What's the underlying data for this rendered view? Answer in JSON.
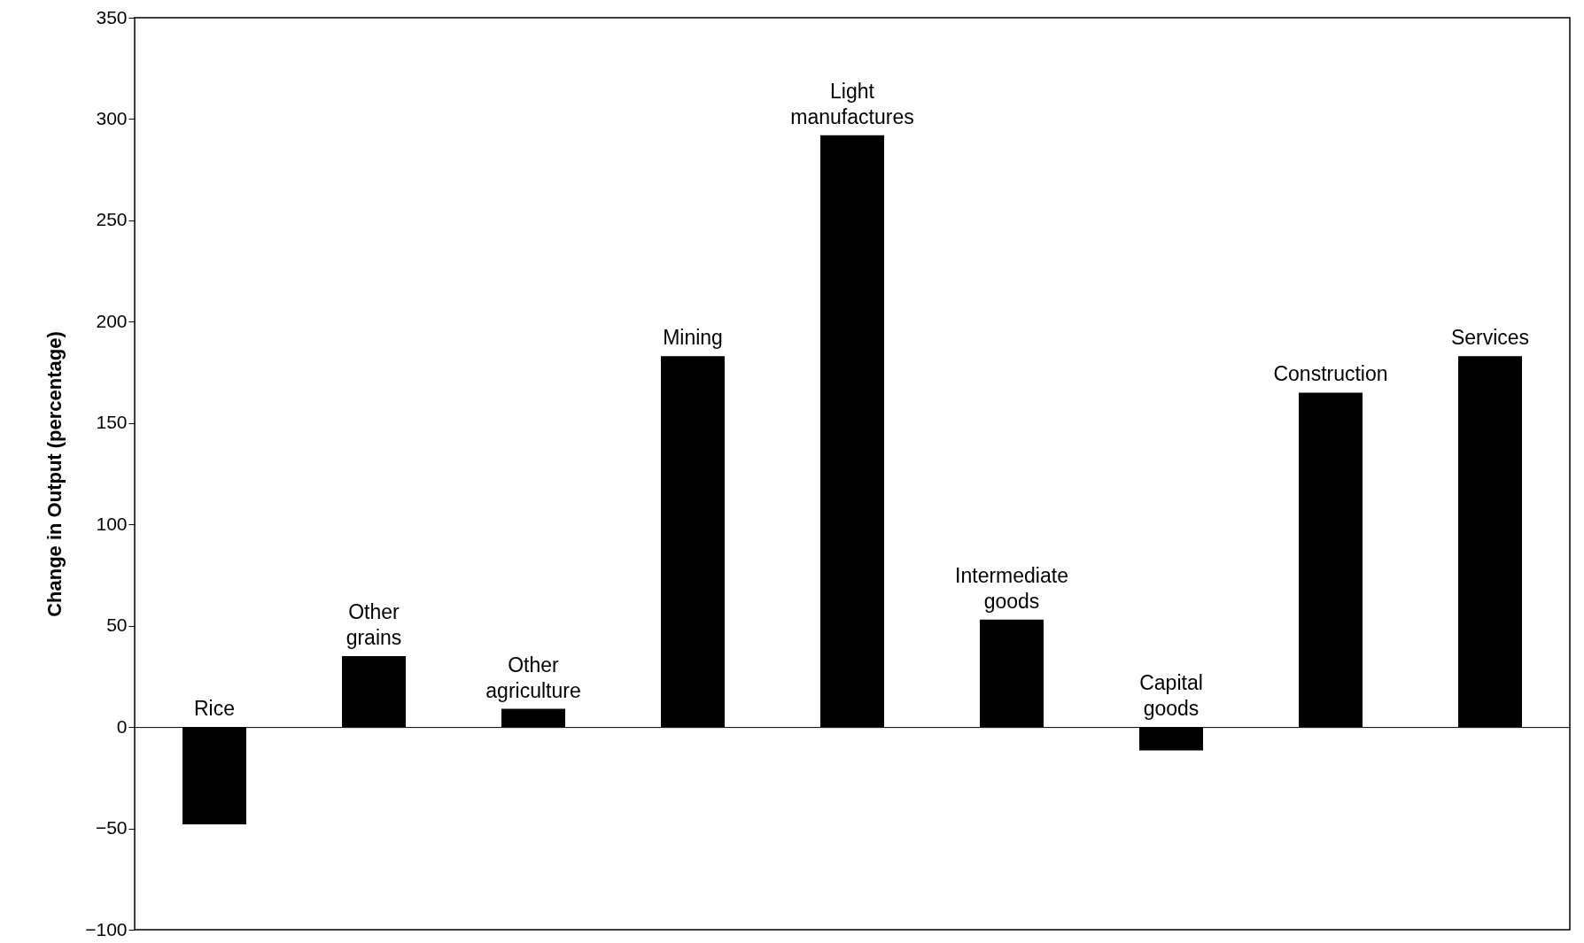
{
  "chart_data": {
    "type": "bar",
    "ylabel": "Change in Output (percentage)",
    "categories": [
      "Rice",
      "Other grains",
      "Other agriculture",
      "Mining",
      "Light manufactures",
      "Intermediate goods",
      "Capital goods",
      "Construction",
      "Services"
    ],
    "values": [
      -48,
      35,
      9,
      183,
      292,
      53,
      -11.5,
      165,
      183
    ],
    "color": "#000000",
    "ylim": [
      -100,
      350
    ],
    "yticks": [
      -100,
      -50,
      0,
      50,
      100,
      150,
      200,
      250,
      300,
      350
    ],
    "tick_labels": "y"
  }
}
